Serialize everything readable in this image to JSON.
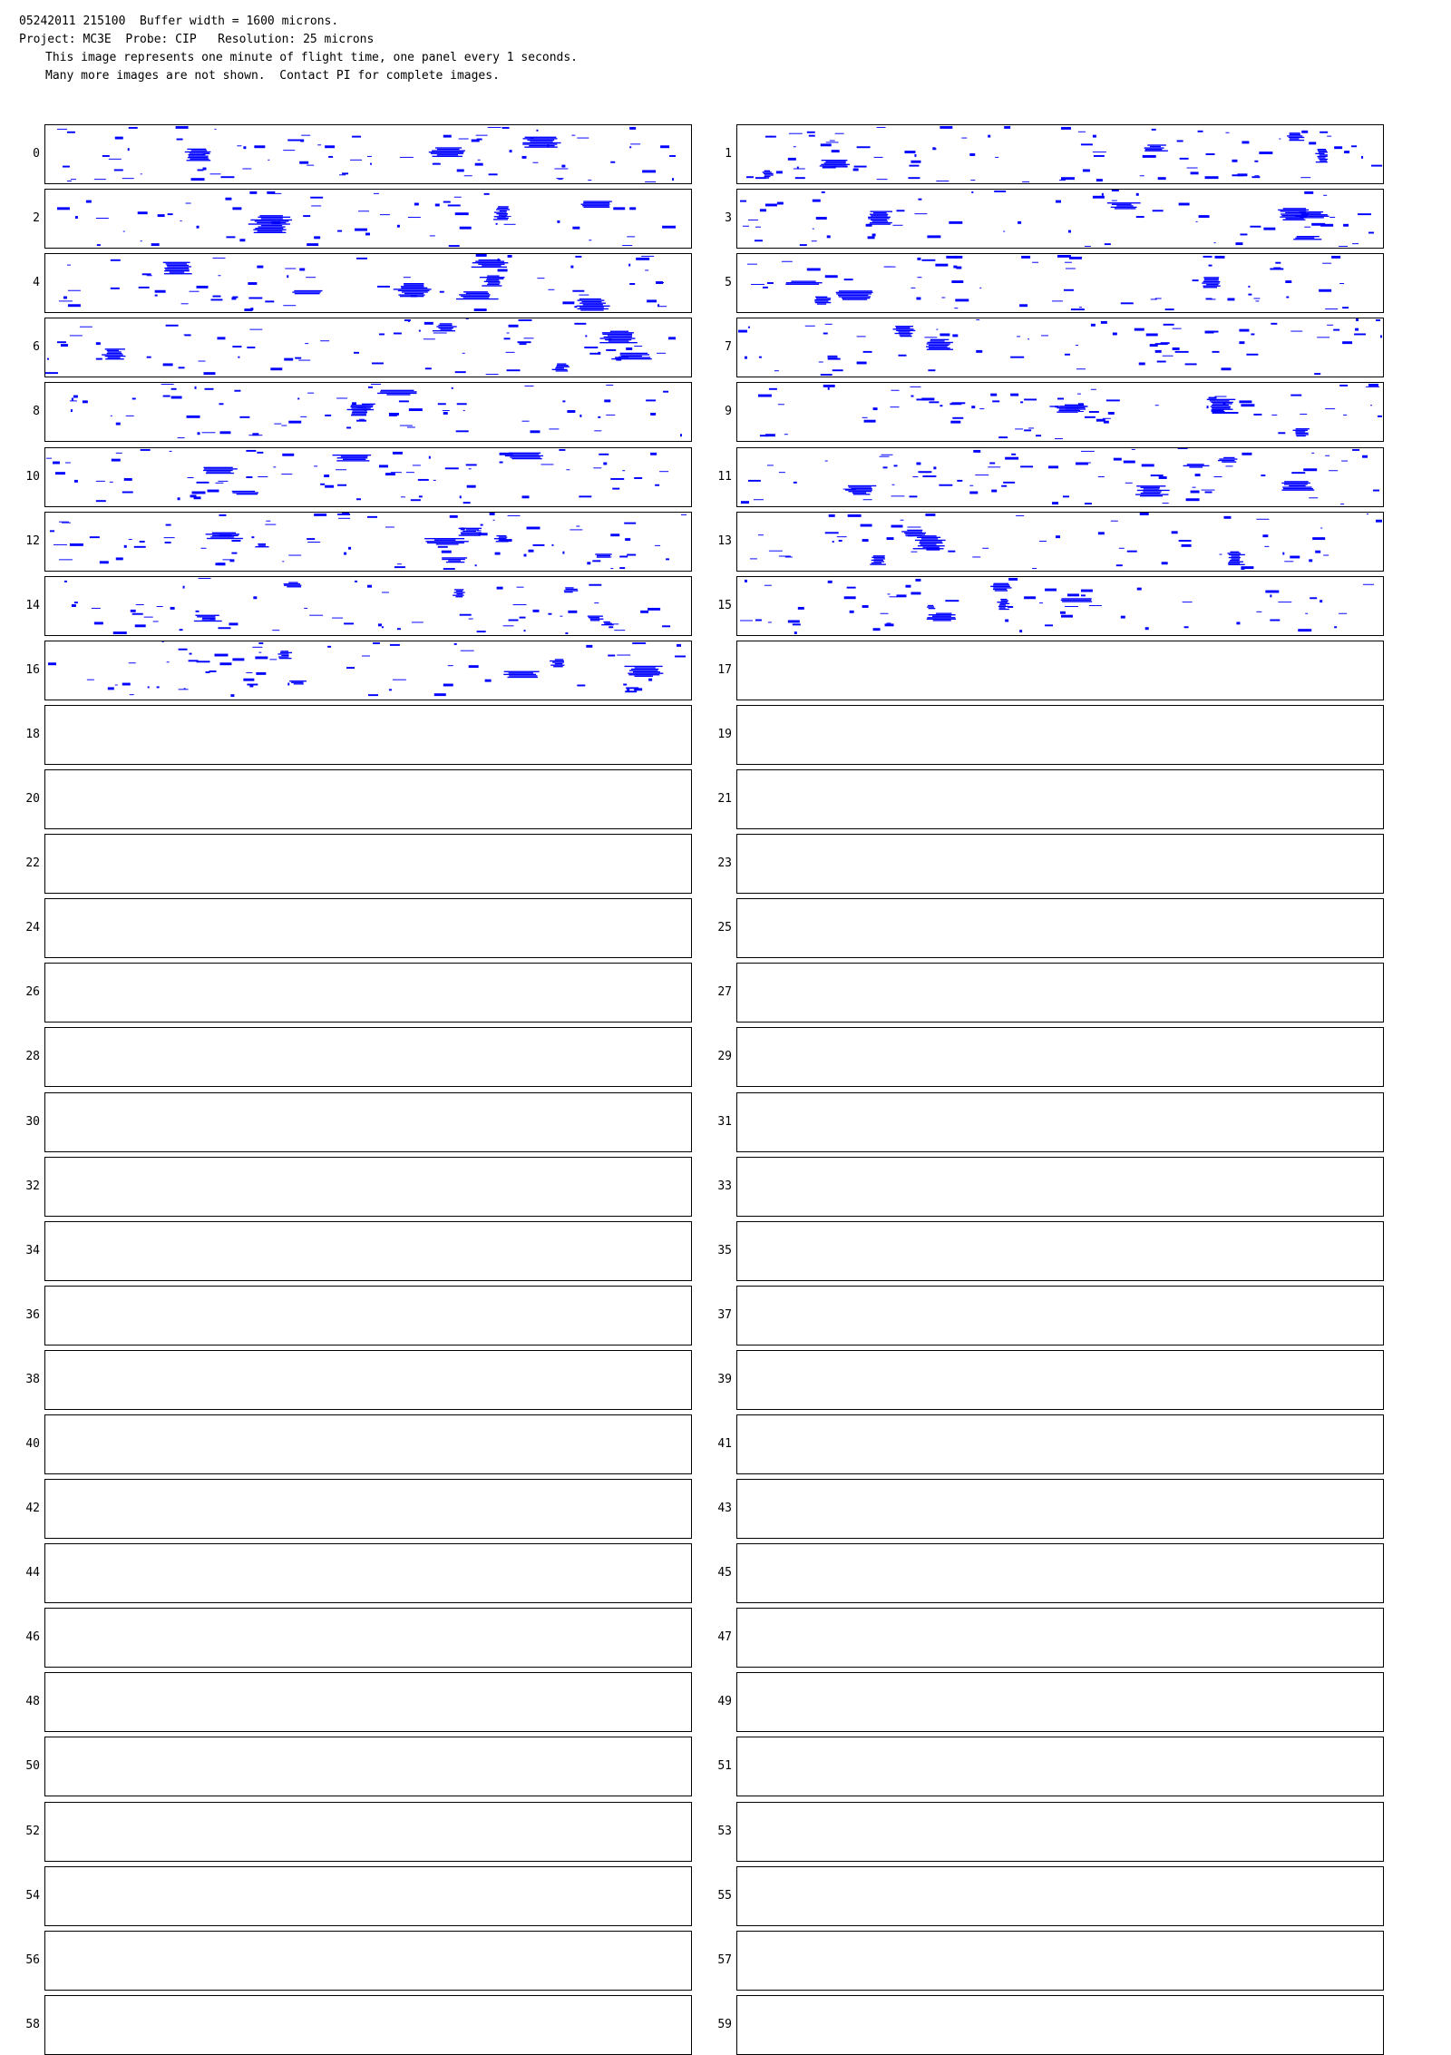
{
  "header": {
    "line1": "05242011 215100  Buffer width = 1600 microns.",
    "line2": "Project: MC3E  Probe: CIP   Resolution: 25 microns",
    "line3": "This image represents one minute of flight time, one panel every 1 seconds.",
    "line4": "Many more images are not shown.  Contact PI for complete images."
  },
  "colors": {
    "particle": "#0000ff",
    "frame": "#000000",
    "background": "#ffffff"
  },
  "panels": [
    {
      "label": "0",
      "filled": true
    },
    {
      "label": "1",
      "filled": true
    },
    {
      "label": "2",
      "filled": true
    },
    {
      "label": "3",
      "filled": true
    },
    {
      "label": "4",
      "filled": true
    },
    {
      "label": "5",
      "filled": true
    },
    {
      "label": "6",
      "filled": true
    },
    {
      "label": "7",
      "filled": true
    },
    {
      "label": "8",
      "filled": true
    },
    {
      "label": "9",
      "filled": true
    },
    {
      "label": "10",
      "filled": true
    },
    {
      "label": "11",
      "filled": true
    },
    {
      "label": "12",
      "filled": true
    },
    {
      "label": "13",
      "filled": true
    },
    {
      "label": "14",
      "filled": true
    },
    {
      "label": "15",
      "filled": true
    },
    {
      "label": "16",
      "filled": true
    },
    {
      "label": "17",
      "filled": false
    },
    {
      "label": "18",
      "filled": false
    },
    {
      "label": "19",
      "filled": false
    },
    {
      "label": "20",
      "filled": false
    },
    {
      "label": "21",
      "filled": false
    },
    {
      "label": "22",
      "filled": false
    },
    {
      "label": "23",
      "filled": false
    },
    {
      "label": "24",
      "filled": false
    },
    {
      "label": "25",
      "filled": false
    },
    {
      "label": "26",
      "filled": false
    },
    {
      "label": "27",
      "filled": false
    },
    {
      "label": "28",
      "filled": false
    },
    {
      "label": "29",
      "filled": false
    },
    {
      "label": "30",
      "filled": false
    },
    {
      "label": "31",
      "filled": false
    },
    {
      "label": "32",
      "filled": false
    },
    {
      "label": "33",
      "filled": false
    },
    {
      "label": "34",
      "filled": false
    },
    {
      "label": "35",
      "filled": false
    },
    {
      "label": "36",
      "filled": false
    },
    {
      "label": "37",
      "filled": false
    },
    {
      "label": "38",
      "filled": false
    },
    {
      "label": "39",
      "filled": false
    },
    {
      "label": "40",
      "filled": false
    },
    {
      "label": "41",
      "filled": false
    },
    {
      "label": "42",
      "filled": false
    },
    {
      "label": "43",
      "filled": false
    },
    {
      "label": "44",
      "filled": false
    },
    {
      "label": "45",
      "filled": false
    },
    {
      "label": "46",
      "filled": false
    },
    {
      "label": "47",
      "filled": false
    },
    {
      "label": "48",
      "filled": false
    },
    {
      "label": "49",
      "filled": false
    },
    {
      "label": "50",
      "filled": false
    },
    {
      "label": "51",
      "filled": false
    },
    {
      "label": "52",
      "filled": false
    },
    {
      "label": "53",
      "filled": false
    },
    {
      "label": "54",
      "filled": false
    },
    {
      "label": "55",
      "filled": false
    },
    {
      "label": "56",
      "filled": false
    },
    {
      "label": "57",
      "filled": false
    },
    {
      "label": "58",
      "filled": false
    },
    {
      "label": "59",
      "filled": false
    }
  ]
}
